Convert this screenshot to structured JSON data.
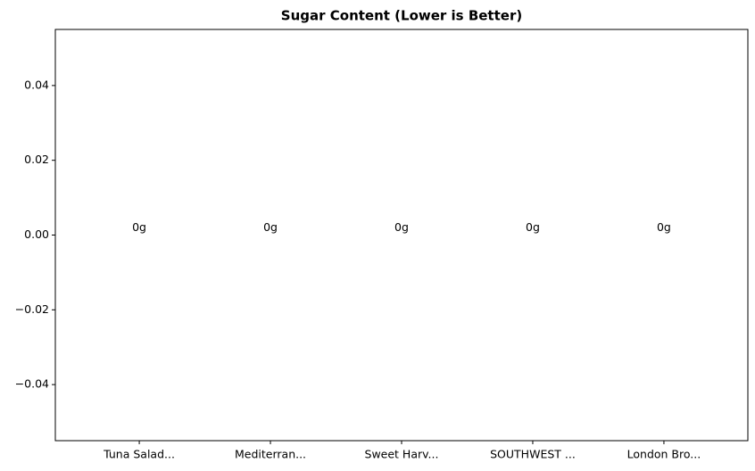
{
  "chart_data": {
    "type": "bar",
    "title": "Sugar Content (Lower is Better)",
    "categories": [
      "Tuna Salad...",
      "Mediterran...",
      "Sweet Harv...",
      "SOUTHWEST ...",
      "London Bro..."
    ],
    "values": [
      0,
      0,
      0,
      0,
      0
    ],
    "value_labels": [
      "0g",
      "0g",
      "0g",
      "0g",
      "0g"
    ],
    "ylim": [
      -0.055,
      0.055
    ],
    "yticks": [
      {
        "value": -0.04,
        "label": "−0.04"
      },
      {
        "value": -0.02,
        "label": "−0.02"
      },
      {
        "value": 0,
        "label": "0.00"
      },
      {
        "value": 0.02,
        "label": "0.02"
      },
      {
        "value": 0.04,
        "label": "0.04"
      }
    ],
    "grid": false
  }
}
